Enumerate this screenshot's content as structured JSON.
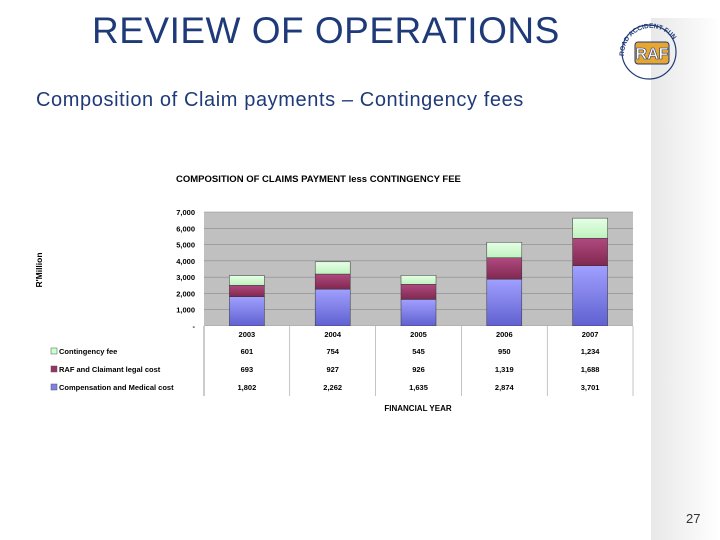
{
  "slide": {
    "title": "REVIEW OF OPERATIONS",
    "subtitle": "Composition of Claim payments – Contingency fees",
    "page_number": "27",
    "logo_text": "RAF",
    "logo_ring_text": "ROAD ACCIDENT FUND"
  },
  "colors": {
    "title": "#1f3a78",
    "contingency": "#ccffcc",
    "legal": "#993366",
    "compensation": "#8080e8",
    "plot_bg": "#c0c0c0"
  },
  "chart_data": {
    "type": "bar",
    "stacked": true,
    "title": "COMPOSITION OF CLAIMS PAYMENT less CONTINGENCY FEE",
    "xlabel": "FINANCIAL YEAR",
    "ylabel": "R'Million",
    "categories": [
      "2003",
      "2004",
      "2005",
      "2006",
      "2007"
    ],
    "ylim": [
      0,
      7000
    ],
    "yticks": [
      "7,000",
      "6,000",
      "5,000",
      "4,000",
      "3,000",
      "2,000",
      "1,000",
      "-"
    ],
    "grid": true,
    "legend_placement": "left data table",
    "series": [
      {
        "name": "Contingency fee",
        "values": [
          601,
          754,
          545,
          950,
          1234
        ],
        "labels": [
          "601",
          "754",
          "545",
          "950",
          "1,234"
        ]
      },
      {
        "name": "RAF and Claimant legal cost",
        "values": [
          693,
          927,
          926,
          1319,
          1688
        ],
        "labels": [
          "693",
          "927",
          "926",
          "1,319",
          "1,688"
        ]
      },
      {
        "name": "Compensation and Medical cost",
        "values": [
          1802,
          2262,
          1635,
          2874,
          3701
        ],
        "labels": [
          "1,802",
          "2,262",
          "1,635",
          "2,874",
          "3,701"
        ]
      }
    ]
  }
}
